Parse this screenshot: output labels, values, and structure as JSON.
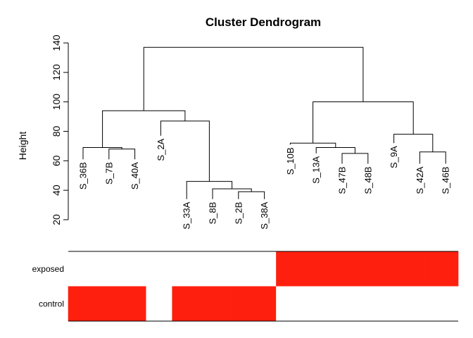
{
  "chart_data": {
    "type": "dendrogram",
    "title": "Cluster Dendrogram",
    "ylabel": "Height",
    "ylim": [
      20,
      140
    ],
    "yticks": [
      20,
      40,
      60,
      80,
      100,
      120,
      140
    ],
    "grid": false,
    "leaves": [
      {
        "label": "S_36B",
        "height": 61
      },
      {
        "label": "S_7B",
        "height": 61
      },
      {
        "label": "S_40A",
        "height": 61
      },
      {
        "label": "S_2A",
        "height": 77
      },
      {
        "label": "S_33A",
        "height": 34
      },
      {
        "label": "S_8B",
        "height": 34
      },
      {
        "label": "S_2B",
        "height": 34
      },
      {
        "label": "S_38A",
        "height": 34
      },
      {
        "label": "S_10B",
        "height": 71
      },
      {
        "label": "S_13A",
        "height": 65
      },
      {
        "label": "S_47B",
        "height": 58
      },
      {
        "label": "S_48B",
        "height": 58
      },
      {
        "label": "S_9A",
        "height": 72
      },
      {
        "label": "S_42A",
        "height": 58
      },
      {
        "label": "S_46B",
        "height": 58
      }
    ],
    "merges": [
      {
        "left": 1,
        "right": 2,
        "height": 68
      },
      {
        "left": 0,
        "right": "m0",
        "height": 69
      },
      {
        "left": 6,
        "right": 7,
        "height": 39
      },
      {
        "left": 5,
        "right": "m2",
        "height": 41
      },
      {
        "left": 4,
        "right": "m3",
        "height": 46
      },
      {
        "left": 3,
        "right": "m4",
        "height": 87
      },
      {
        "left": "m1",
        "right": "m5",
        "height": 94
      },
      {
        "left": 10,
        "right": 11,
        "height": 65
      },
      {
        "left": 9,
        "right": "m7",
        "height": 69
      },
      {
        "left": 8,
        "right": "m8",
        "height": 72
      },
      {
        "left": 13,
        "right": 14,
        "height": 66
      },
      {
        "left": 12,
        "right": "m10",
        "height": 78
      },
      {
        "left": "m9",
        "right": "m11",
        "height": 100
      },
      {
        "left": "m6",
        "right": "m12",
        "height": 137
      }
    ],
    "color_bar": {
      "rows": [
        {
          "label": "exposed",
          "values": [
            0,
            0,
            0,
            0,
            0,
            0,
            0,
            0,
            1,
            1,
            1,
            1,
            1,
            1,
            1
          ]
        },
        {
          "label": "control",
          "values": [
            1,
            1,
            1,
            0,
            1,
            1,
            1,
            1,
            0,
            0,
            0,
            0,
            0,
            0,
            0
          ]
        }
      ],
      "on_color": "#ff1f0e",
      "off_color": "#ffffff"
    }
  }
}
